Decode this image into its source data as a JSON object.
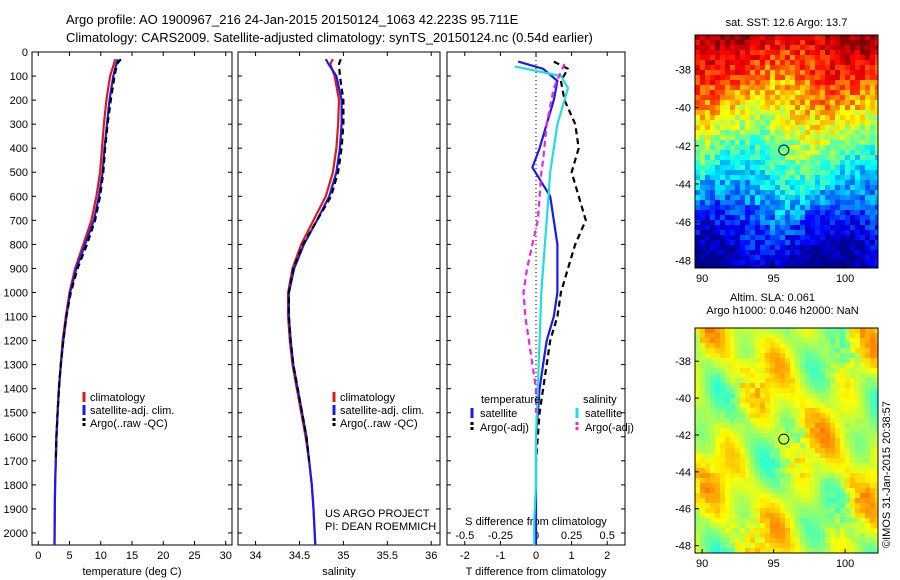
{
  "header": {
    "line1": "Argo profile: AO 1900967_216 24-Jan-2015 20150124_1063 42.223S 95.711E",
    "line2": "Climatology: CARS2009. Satellite-adjusted climatology: synTS_20150124.nc (0.54d earlier)"
  },
  "side_label": "©IMOS 31-Jan-2015 20:38:57",
  "project": {
    "line1": "US ARGO PROJECT",
    "line2": "PI: DEAN ROEMMICH"
  },
  "colors": {
    "clim": "#dd1a1a",
    "sat": "#1a1aee",
    "argo": "#000000",
    "sat_s": "#22dddd",
    "argo_s": "#ee22ee"
  },
  "chart_data": [
    {
      "id": "temperature",
      "type": "line",
      "xlabel": "temperature (deg C)",
      "xlim": [
        -1,
        31
      ],
      "xticks": [
        "0",
        "5",
        "10",
        "15",
        "20",
        "25",
        "30"
      ],
      "xtick_values": [
        0,
        5,
        10,
        15,
        20,
        25,
        30
      ],
      "ylim": [
        2050,
        0
      ],
      "yticks": [
        "0",
        "100",
        "200",
        "300",
        "400",
        "500",
        "600",
        "700",
        "800",
        "900",
        "1000",
        "1100",
        "1200",
        "1300",
        "1400",
        "1500",
        "1600",
        "1700",
        "1800",
        "1900",
        "2000"
      ],
      "ytick_values": [
        0,
        100,
        200,
        300,
        400,
        500,
        600,
        700,
        800,
        900,
        1000,
        1100,
        1200,
        1300,
        1400,
        1500,
        1600,
        1700,
        1800,
        1900,
        2000
      ],
      "legend": [
        "climatology",
        "satellite-adj. clim.",
        "Argo(..raw -QC)"
      ],
      "series": [
        {
          "name": "climatology",
          "style": "clim",
          "x": [
            12.3,
            12.1,
            11.5,
            10.9,
            10.5,
            10.2,
            9.9,
            9.3,
            8.5,
            7.2,
            5.9,
            5.0,
            4.4,
            3.9,
            3.6,
            3.3,
            3.1,
            2.9,
            2.8,
            2.7,
            2.65,
            2.6
          ],
          "y": [
            30,
            50,
            100,
            200,
            300,
            400,
            500,
            600,
            700,
            800,
            900,
            1000,
            1100,
            1200,
            1300,
            1400,
            1500,
            1600,
            1700,
            1800,
            1900,
            2050
          ]
        },
        {
          "name": "satellite-adj. clim.",
          "style": "sat",
          "x": [
            12.7,
            12.5,
            12.0,
            11.4,
            11.0,
            10.6,
            10.3,
            9.7,
            8.9,
            7.5,
            6.1,
            5.1,
            4.5,
            4.0,
            3.6,
            3.3,
            3.1,
            2.9,
            2.8,
            2.7,
            2.65,
            2.6
          ],
          "y": [
            30,
            50,
            100,
            200,
            300,
            400,
            500,
            600,
            700,
            800,
            900,
            1000,
            1100,
            1200,
            1300,
            1400,
            1500,
            1600,
            1700,
            1800,
            1900,
            2050
          ]
        },
        {
          "name": "Argo(..raw -QC)",
          "style": "argo",
          "x": [
            13.2,
            12.6,
            12.2,
            11.6,
            11.1,
            10.7,
            10.4,
            9.9,
            9.1,
            7.8,
            6.3,
            5.2,
            4.5,
            4.0,
            3.6,
            3.3,
            3.1,
            2.9,
            2.8
          ],
          "y": [
            30,
            50,
            100,
            200,
            300,
            400,
            500,
            600,
            700,
            800,
            900,
            1000,
            1100,
            1200,
            1300,
            1400,
            1500,
            1600,
            1700
          ]
        }
      ]
    },
    {
      "id": "salinity",
      "type": "line",
      "xlabel": "salinity",
      "xlim": [
        33.8,
        36.1
      ],
      "xticks": [
        "34",
        "34.5",
        "35",
        "35.5",
        "36"
      ],
      "xtick_values": [
        34,
        34.5,
        35,
        35.5,
        36
      ],
      "ylim": [
        2050,
        0
      ],
      "legend": [
        "climatology",
        "satellite-adj. clim.",
        "Argo(..raw -QC)"
      ],
      "series": [
        {
          "name": "climatology",
          "style": "clim",
          "x": [
            34.88,
            34.85,
            34.9,
            34.95,
            34.94,
            34.92,
            34.88,
            34.8,
            34.66,
            34.52,
            34.42,
            34.37,
            34.37,
            34.39,
            34.42,
            34.47,
            34.52,
            34.57,
            34.61,
            34.64,
            34.66,
            34.68
          ],
          "y": [
            30,
            50,
            100,
            200,
            300,
            400,
            500,
            600,
            700,
            800,
            900,
            1000,
            1100,
            1200,
            1300,
            1400,
            1500,
            1600,
            1700,
            1800,
            1900,
            2050
          ]
        },
        {
          "name": "satellite-adj. clim.",
          "style": "sat",
          "x": [
            34.8,
            34.83,
            34.92,
            34.98,
            34.98,
            34.96,
            34.92,
            34.84,
            34.7,
            34.55,
            34.44,
            34.38,
            34.38,
            34.4,
            34.43,
            34.48,
            34.53,
            34.58,
            34.61,
            34.64,
            34.66,
            34.68
          ],
          "y": [
            30,
            50,
            100,
            200,
            300,
            400,
            500,
            600,
            700,
            800,
            900,
            1000,
            1100,
            1200,
            1300,
            1400,
            1500,
            1600,
            1700,
            1800,
            1900,
            2050
          ]
        },
        {
          "name": "Argo(..raw -QC)",
          "style": "argo",
          "x": [
            34.97,
            34.95,
            34.96,
            35.0,
            35.0,
            34.98,
            34.94,
            34.86,
            34.7,
            34.54,
            34.43,
            34.38,
            34.38,
            34.4,
            34.43,
            34.48,
            34.53,
            34.58,
            34.61
          ],
          "y": [
            30,
            50,
            100,
            200,
            300,
            400,
            500,
            600,
            700,
            800,
            900,
            1000,
            1100,
            1200,
            1300,
            1400,
            1500,
            1600,
            1700
          ]
        }
      ]
    },
    {
      "id": "difference",
      "type": "line",
      "xlabel": "T difference from climatology",
      "xlabel_top": "S difference from climatology",
      "xlim": [
        -2.5,
        2.5
      ],
      "xticks": [
        "-2",
        "-1",
        "0",
        "1",
        "2"
      ],
      "xtick_values": [
        -2,
        -1,
        0,
        1,
        2
      ],
      "xticks_top": [
        "-0.5",
        "-0.25",
        "0",
        "0.25",
        "0.5"
      ],
      "xtick_top_values": [
        -2,
        -1,
        0,
        1,
        2
      ],
      "ylim": [
        2050,
        0
      ],
      "legend_groups": [
        "temperature",
        "salinity"
      ],
      "legend": [
        "satellite",
        "Argo(-adj)",
        "satellite",
        "Argo(-adj)"
      ],
      "series": [
        {
          "name": "satellite",
          "group": "temperature",
          "style": "sat",
          "x": [
            -0.5,
            0.2,
            0.6,
            0.5,
            0.3,
            0.1,
            -0.1,
            0.4,
            0.5,
            0.6,
            0.6,
            0.6,
            0.5,
            0.3,
            0.2,
            0.1,
            0.05,
            0.0,
            0.0,
            0.0,
            0.0
          ],
          "y": [
            40,
            70,
            120,
            200,
            300,
            400,
            480,
            600,
            700,
            800,
            900,
            1000,
            1100,
            1200,
            1300,
            1400,
            1500,
            1600,
            1700,
            1800,
            2050
          ]
        },
        {
          "name": "Argo(-adj)",
          "group": "temperature",
          "style": "argo",
          "x": [
            0.5,
            0.9,
            0.7,
            0.8,
            1.1,
            1.2,
            1.0,
            1.2,
            1.4,
            1.1,
            0.9,
            0.7,
            0.6,
            0.4,
            0.3,
            0.2,
            0.1,
            0.05,
            0.0
          ],
          "y": [
            40,
            70,
            120,
            200,
            300,
            400,
            500,
            600,
            700,
            800,
            900,
            1000,
            1100,
            1200,
            1300,
            1400,
            1500,
            1600,
            1700
          ]
        },
        {
          "name": "satellite",
          "group": "salinity",
          "style": "sat_s",
          "x": [
            -0.6,
            0.7,
            0.9,
            0.8,
            0.6,
            0.5,
            0.4,
            0.35,
            0.3,
            0.25,
            0.2,
            0.15,
            0.1,
            0.05,
            0.0,
            0.0,
            -0.05,
            -0.05
          ],
          "y": [
            60,
            100,
            150,
            200,
            300,
            400,
            500,
            600,
            700,
            800,
            900,
            1000,
            1200,
            1400,
            1600,
            1800,
            1950,
            2050
          ]
        },
        {
          "name": "Argo(-adj)",
          "group": "salinity",
          "style": "argo_s",
          "x": [
            0.8,
            0.5,
            0.3,
            0.2,
            0.15,
            0.1,
            0.05,
            -0.1,
            -0.25,
            -0.35,
            -0.3,
            -0.2,
            -0.1,
            0.0,
            0.0
          ],
          "y": [
            50,
            150,
            300,
            450,
            500,
            600,
            700,
            800,
            900,
            1000,
            1100,
            1200,
            1300,
            1400,
            1500
          ]
        }
      ]
    },
    {
      "id": "sst_map",
      "type": "heatmap",
      "title": "sat. SST: 12.6  Argo: 13.7",
      "xticks": [
        "90",
        "95",
        "100"
      ],
      "xtick_values": [
        90,
        95,
        100
      ],
      "yticks": [
        "-38",
        "-40",
        "-42",
        "-44",
        "-46",
        "-48"
      ],
      "ytick_values": [
        -38,
        -40,
        -42,
        -44,
        -46,
        -48
      ],
      "xlim": [
        89.5,
        102.3
      ],
      "ylim": [
        -48.4,
        -36.2
      ],
      "marker": {
        "lon": 95.711,
        "lat": -42.223
      }
    },
    {
      "id": "sla_map",
      "type": "heatmap",
      "title_line1": "Altim. SLA: 0.061",
      "title_line2": "Argo h1000: 0.046 h2000: NaN",
      "xticks": [
        "90",
        "95",
        "100"
      ],
      "xtick_values": [
        90,
        95,
        100
      ],
      "yticks": [
        "-38",
        "-40",
        "-42",
        "-44",
        "-46",
        "-48"
      ],
      "ytick_values": [
        -38,
        -40,
        -42,
        -44,
        -46,
        -48
      ],
      "xlim": [
        89.5,
        102.3
      ],
      "ylim": [
        -48.4,
        -36.2
      ],
      "marker": {
        "lon": 95.711,
        "lat": -42.223
      }
    }
  ]
}
